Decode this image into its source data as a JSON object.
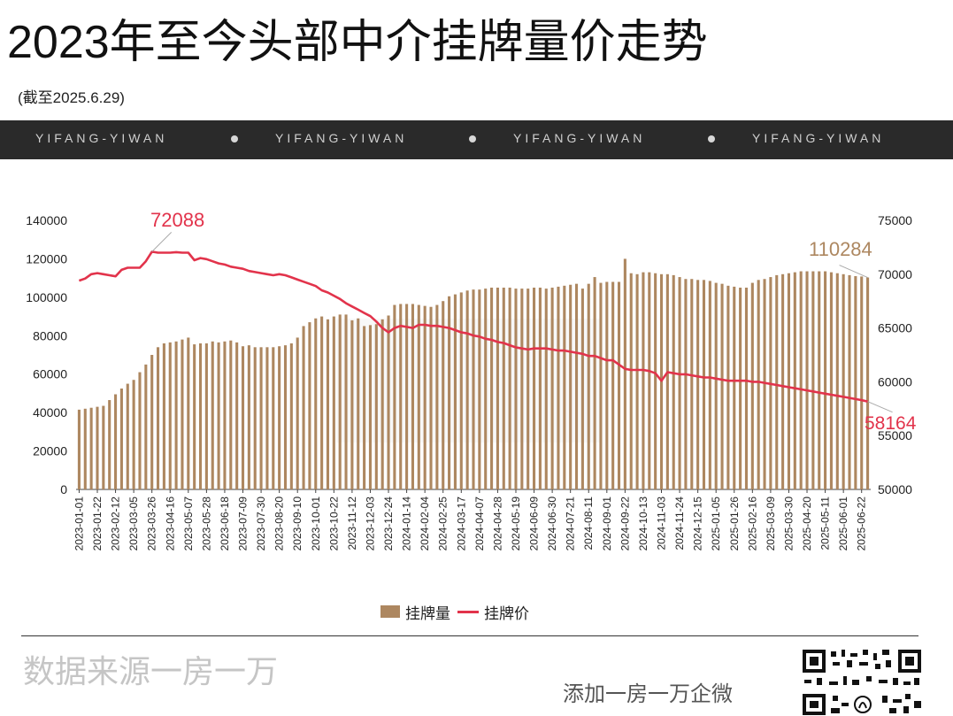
{
  "header": {
    "title": "2023年至今头部中介挂牌量价走势",
    "subtitle": "(截至2025.6.29)",
    "banner_items": [
      "YIFANG-YIWAN",
      "YIFANG-YIWAN",
      "YIFANG-YIWAN",
      "YIFANG-YIWAN"
    ]
  },
  "footer": {
    "source": "数据来源一房一万",
    "cta": "添加一房一万企微"
  },
  "colors": {
    "bar": "#ad8760",
    "line": "#e2334b",
    "banner_bg": "#2a2a2a"
  },
  "chart_data": {
    "type": "bar+line",
    "legend_position": "bottom",
    "grid": false,
    "x": [
      "2023-01-01",
      "2023-01-08",
      "2023-01-15",
      "2023-01-22",
      "2023-01-29",
      "2023-02-05",
      "2023-02-12",
      "2023-02-19",
      "2023-02-26",
      "2023-03-05",
      "2023-03-12",
      "2023-03-19",
      "2023-03-26",
      "2023-04-02",
      "2023-04-09",
      "2023-04-16",
      "2023-04-23",
      "2023-04-30",
      "2023-05-07",
      "2023-05-14",
      "2023-05-21",
      "2023-05-28",
      "2023-06-04",
      "2023-06-11",
      "2023-06-18",
      "2023-06-25",
      "2023-07-02",
      "2023-07-09",
      "2023-07-16",
      "2023-07-23",
      "2023-07-30",
      "2023-08-06",
      "2023-08-13",
      "2023-08-20",
      "2023-08-27",
      "2023-09-03",
      "2023-09-10",
      "2023-09-17",
      "2023-09-24",
      "2023-10-01",
      "2023-10-08",
      "2023-10-15",
      "2023-10-22",
      "2023-10-29",
      "2023-11-05",
      "2023-11-12",
      "2023-11-19",
      "2023-11-26",
      "2023-12-03",
      "2023-12-10",
      "2023-12-17",
      "2023-12-24",
      "2023-12-31",
      "2024-01-07",
      "2024-01-14",
      "2024-01-21",
      "2024-01-28",
      "2024-02-04",
      "2024-02-11",
      "2024-02-18",
      "2024-02-25",
      "2024-03-03",
      "2024-03-10",
      "2024-03-17",
      "2024-03-24",
      "2024-03-31",
      "2024-04-07",
      "2024-04-14",
      "2024-04-21",
      "2024-04-28",
      "2024-05-05",
      "2024-05-12",
      "2024-05-19",
      "2024-05-26",
      "2024-06-02",
      "2024-06-09",
      "2024-06-16",
      "2024-06-23",
      "2024-06-30",
      "2024-07-07",
      "2024-07-14",
      "2024-07-21",
      "2024-07-28",
      "2024-08-04",
      "2024-08-11",
      "2024-08-18",
      "2024-08-25",
      "2024-09-01",
      "2024-09-08",
      "2024-09-15",
      "2024-09-22",
      "2024-09-29",
      "2024-10-06",
      "2024-10-13",
      "2024-10-20",
      "2024-10-27",
      "2024-11-03",
      "2024-11-10",
      "2024-11-17",
      "2024-11-24",
      "2024-12-01",
      "2024-12-08",
      "2024-12-15",
      "2024-12-22",
      "2024-12-29",
      "2025-01-05",
      "2025-01-12",
      "2025-01-19",
      "2025-01-26",
      "2025-02-02",
      "2025-02-09",
      "2025-02-16",
      "2025-02-23",
      "2025-03-02",
      "2025-03-09",
      "2025-03-16",
      "2025-03-23",
      "2025-03-30",
      "2025-04-06",
      "2025-04-13",
      "2025-04-20",
      "2025-04-27",
      "2025-05-04",
      "2025-05-11",
      "2025-05-18",
      "2025-05-25",
      "2025-06-01",
      "2025-06-08",
      "2025-06-15",
      "2025-06-22",
      "2025-06-29"
    ],
    "x_tick_every": 3,
    "series": [
      {
        "name": "挂牌量",
        "type": "bar",
        "axis": "left",
        "values": [
          41500,
          42000,
          42500,
          43000,
          43500,
          46500,
          49500,
          52500,
          55000,
          57000,
          61000,
          65000,
          70000,
          74000,
          76000,
          76500,
          77000,
          78000,
          79000,
          75500,
          76000,
          76000,
          77000,
          76500,
          77000,
          77500,
          76500,
          74500,
          75000,
          74000,
          74000,
          74000,
          74000,
          74500,
          75000,
          76000,
          79000,
          85000,
          87000,
          89000,
          90000,
          88500,
          90000,
          91000,
          91000,
          88000,
          89000,
          85000,
          85500,
          86000,
          88500,
          90500,
          96000,
          96500,
          96500,
          96500,
          96000,
          95500,
          95000,
          96000,
          98000,
          100500,
          101500,
          102500,
          103500,
          104000,
          104000,
          104500,
          105000,
          105000,
          105000,
          105000,
          104500,
          104500,
          104500,
          105000,
          105000,
          104500,
          105000,
          105500,
          106000,
          106500,
          107000,
          104500,
          107000,
          110500,
          107500,
          108000,
          108000,
          108000,
          120000,
          112500,
          112000,
          113000,
          113000,
          112500,
          112000,
          112000,
          111500,
          110500,
          109500,
          109500,
          109000,
          109000,
          108500,
          107500,
          107000,
          106000,
          105500,
          105000,
          105000,
          107500,
          109000,
          109500,
          110500,
          111500,
          112000,
          112500,
          113000,
          113500,
          113500,
          113500,
          113500,
          113500,
          113000,
          112500,
          112000,
          111500,
          111000,
          110800,
          110284
        ]
      },
      {
        "name": "挂牌价",
        "type": "line",
        "axis": "right",
        "values": [
          69400,
          69600,
          70000,
          70100,
          70000,
          69900,
          69800,
          70400,
          70600,
          70600,
          70600,
          71200,
          72088,
          72000,
          72000,
          72000,
          72050,
          72000,
          72000,
          71300,
          71500,
          71400,
          71200,
          71000,
          70900,
          70700,
          70600,
          70500,
          70300,
          70200,
          70100,
          70000,
          69900,
          70000,
          69900,
          69700,
          69500,
          69300,
          69100,
          68900,
          68500,
          68300,
          68000,
          67700,
          67300,
          67000,
          66700,
          66400,
          66100,
          65600,
          65000,
          64600,
          65000,
          65200,
          65100,
          65000,
          65300,
          65300,
          65200,
          65200,
          65100,
          65000,
          64800,
          64600,
          64500,
          64300,
          64200,
          64000,
          63900,
          63700,
          63600,
          63400,
          63200,
          63100,
          63000,
          63100,
          63100,
          63100,
          63000,
          62900,
          62900,
          62800,
          62700,
          62600,
          62400,
          62400,
          62200,
          62000,
          62000,
          61600,
          61200,
          61100,
          61100,
          61100,
          61000,
          60800,
          60100,
          60900,
          60800,
          60700,
          60700,
          60600,
          60500,
          60400,
          60400,
          60300,
          60200,
          60100,
          60100,
          60100,
          60100,
          60000,
          60000,
          59900,
          59800,
          59700,
          59600,
          59500,
          59400,
          59300,
          59200,
          59100,
          59000,
          58900,
          58800,
          58700,
          58600,
          58500,
          58400,
          58300,
          58164
        ]
      }
    ],
    "y_left": {
      "min": 0,
      "max": 140000,
      "ticks": [
        0,
        20000,
        40000,
        60000,
        80000,
        100000,
        120000,
        140000
      ]
    },
    "y_right": {
      "min": 50000,
      "max": 75000,
      "ticks": [
        50000,
        55000,
        60000,
        65000,
        70000,
        75000
      ]
    },
    "annotations": [
      {
        "series": 1,
        "index": 12,
        "text": "72088"
      },
      {
        "series": 0,
        "index": 130,
        "text": "110284"
      },
      {
        "series": 1,
        "index": 130,
        "text": "58164"
      }
    ],
    "legend": [
      "挂牌量",
      "挂牌价"
    ]
  }
}
